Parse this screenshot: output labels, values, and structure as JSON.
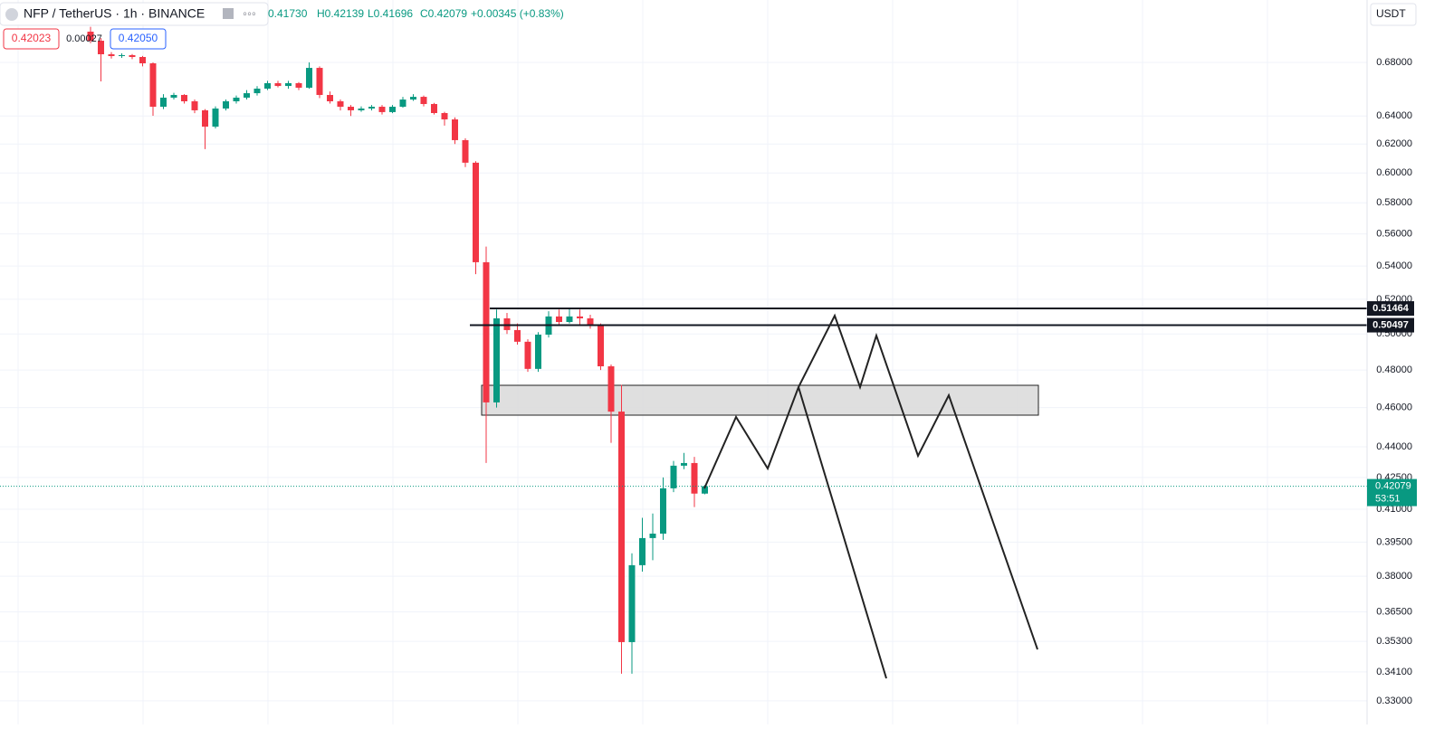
{
  "chart_data": {
    "type": "candlestick",
    "header": {
      "symbol": "NFP / TetherUS · 1h · BINANCE",
      "open": "0.41730",
      "high": "H0.42139",
      "low": "L0.41696",
      "close": "C0.42079",
      "change": "+0.00345 (+0.83%)"
    },
    "buttons": {
      "sell": "0.42023",
      "spread": "0.00027",
      "buy": "0.42050",
      "currency": "USDT"
    },
    "up_color": "#089981",
    "down_color": "#f23645",
    "candles": {
      "open": [
        0.7041,
        0.6969,
        0.6863,
        0.6849,
        0.6856,
        0.6842,
        0.6793,
        0.6467,
        0.6534,
        0.6554,
        0.6507,
        0.6441,
        0.6323,
        0.6454,
        0.6507,
        0.6534,
        0.6567,
        0.6601,
        0.6642,
        0.6621,
        0.6642,
        0.6608,
        0.6758,
        0.6554,
        0.6507,
        0.6467,
        0.6441,
        0.6454,
        0.6467,
        0.6428,
        0.6467,
        0.652,
        0.654,
        0.6487,
        0.6421,
        0.6375,
        0.6227,
        0.607,
        0.5423,
        0.4627,
        0.5089,
        0.5022,
        0.4956,
        0.4806,
        0.4996,
        0.51,
        0.5068,
        0.51,
        0.5089,
        0.5047,
        0.482,
        0.4579,
        0.3527,
        0.3848,
        0.3968,
        0.3988,
        0.4198,
        0.4307,
        0.432,
        0.4173
      ],
      "high": [
        0.708,
        0.699,
        0.688,
        0.687,
        0.6865,
        0.685,
        0.68,
        0.656,
        0.657,
        0.656,
        0.652,
        0.645,
        0.647,
        0.652,
        0.655,
        0.659,
        0.662,
        0.666,
        0.666,
        0.666,
        0.665,
        0.68,
        0.677,
        0.658,
        0.652,
        0.648,
        0.647,
        0.648,
        0.648,
        0.648,
        0.654,
        0.656,
        0.655,
        0.6495,
        0.643,
        0.639,
        0.624,
        0.608,
        0.552,
        0.514,
        0.512,
        0.506,
        0.497,
        0.501,
        0.513,
        0.514,
        0.515,
        0.514,
        0.511,
        0.506,
        0.483,
        0.472,
        0.39,
        0.406,
        0.408,
        0.425,
        0.433,
        0.437,
        0.435,
        0.42139
      ],
      "low": [
        0.695,
        0.6655,
        0.683,
        0.6835,
        0.6825,
        0.677,
        0.6401,
        0.645,
        0.652,
        0.649,
        0.642,
        0.6164,
        0.631,
        0.644,
        0.649,
        0.652,
        0.655,
        0.659,
        0.661,
        0.66,
        0.659,
        0.66,
        0.653,
        0.649,
        0.644,
        0.64,
        0.643,
        0.644,
        0.641,
        0.642,
        0.646,
        0.651,
        0.647,
        0.641,
        0.633,
        0.62,
        0.604,
        0.535,
        0.432,
        0.46,
        0.5,
        0.494,
        0.479,
        0.479,
        0.498,
        0.505,
        0.506,
        0.505,
        0.503,
        0.48,
        0.442,
        0.3403,
        0.3403,
        0.382,
        0.387,
        0.396,
        0.418,
        0.429,
        0.411,
        0.41696
      ],
      "close": [
        0.6969,
        0.6863,
        0.6849,
        0.6856,
        0.6842,
        0.6793,
        0.6467,
        0.6534,
        0.6554,
        0.6507,
        0.6441,
        0.6323,
        0.6454,
        0.6507,
        0.6534,
        0.6567,
        0.6601,
        0.6642,
        0.6621,
        0.6642,
        0.6608,
        0.6758,
        0.6554,
        0.6507,
        0.6467,
        0.6441,
        0.6454,
        0.6467,
        0.6428,
        0.6467,
        0.652,
        0.654,
        0.6487,
        0.6421,
        0.6375,
        0.6227,
        0.607,
        0.5423,
        0.4627,
        0.5089,
        0.5022,
        0.4956,
        0.4806,
        0.4996,
        0.51,
        0.5068,
        0.51,
        0.5089,
        0.5047,
        0.482,
        0.4579,
        0.3527,
        0.3848,
        0.3968,
        0.3988,
        0.4198,
        0.4307,
        0.432,
        0.4173,
        0.42079
      ]
    },
    "log_scale": true,
    "grid": true,
    "ylim": [
      0.3266,
      0.7298
    ],
    "yticks": [
      {
        "value": 0.68,
        "label": "0.68000"
      },
      {
        "value": 0.64,
        "label": "0.64000"
      },
      {
        "value": 0.62,
        "label": "0.62000"
      },
      {
        "value": 0.6,
        "label": "0.60000"
      },
      {
        "value": 0.58,
        "label": "0.58000"
      },
      {
        "value": 0.56,
        "label": "0.56000"
      },
      {
        "value": 0.54,
        "label": "0.54000"
      },
      {
        "value": 0.52,
        "label": "0.52000"
      },
      {
        "value": 0.5,
        "label": "0.50000"
      },
      {
        "value": 0.48,
        "label": "0.48000"
      },
      {
        "value": 0.46,
        "label": "0.46000"
      },
      {
        "value": 0.44,
        "label": "0.44000"
      },
      {
        "value": 0.425,
        "label": "0.42500"
      },
      {
        "value": 0.41,
        "label": "0.41000"
      },
      {
        "value": 0.395,
        "label": "0.39500"
      },
      {
        "value": 0.38,
        "label": "0.38000"
      },
      {
        "value": 0.365,
        "label": "0.36500"
      },
      {
        "value": 0.353,
        "label": "0.35300"
      },
      {
        "value": 0.341,
        "label": "0.34100"
      },
      {
        "value": 0.33,
        "label": "0.33000"
      }
    ],
    "levels": [
      {
        "value": 0.51464,
        "label": "0.51464"
      },
      {
        "value": 0.50497,
        "label": "0.50497"
      }
    ],
    "last_price": {
      "value": 0.42079,
      "label": "0.42079",
      "countdown": "53:51"
    }
  }
}
